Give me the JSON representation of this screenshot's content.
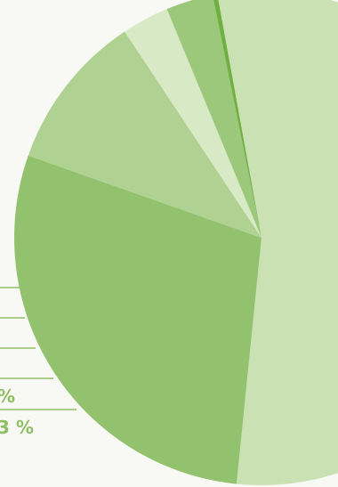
{
  "chart_data": {
    "type": "pie",
    "title": "",
    "slices": [
      {
        "value": 53.0,
        "color": "#cae1b4"
      },
      {
        "value": 28.0,
        "color": "#93c26e"
      },
      {
        "value": 10.0,
        "color": "#afd192"
      },
      {
        "value": 3.0,
        "color": "#d7e9c5"
      },
      {
        "value": 3.0,
        "color": "#9cc87b"
      },
      {
        "value": 0.3,
        "color": "#6fb041"
      }
    ],
    "data_labels": [
      {
        "text": "%"
      },
      {
        "text": "3 %"
      }
    ],
    "leader_line_color": "#8fbf63",
    "legend": "none",
    "grid": false
  }
}
